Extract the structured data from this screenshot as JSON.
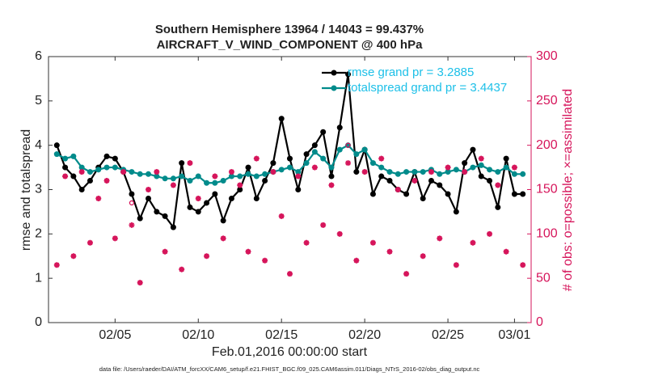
{
  "chart_data": {
    "type": "line",
    "title": "Southern Hemisphere 13964 / 14043 = 99.437%",
    "subtitle": "AIRCRAFT_V_WIND_COMPONENT @ 400 hPa",
    "x_label": "Feb.01,2016 00:00:00 start",
    "y_label": "rmse and totalspread",
    "y2_label": "# of obs: o=possible; ×=assimilated",
    "footnote": "data file: /Users/raeder/DAI/ATM_forcXX/CAM6_setup/f.e21.FHIST_BGC.f09_025.CAM6assim.011/Diags_NTrS_2016-02/obs_diag_output.nc",
    "xlim": [
      1,
      30
    ],
    "xticks": [
      {
        "value": 5,
        "label": "02/05"
      },
      {
        "value": 10,
        "label": "02/10"
      },
      {
        "value": 15,
        "label": "02/15"
      },
      {
        "value": 20,
        "label": "02/20"
      },
      {
        "value": 25,
        "label": "02/25"
      },
      {
        "value": 29,
        "label": "03/01"
      }
    ],
    "ylim": [
      0,
      6
    ],
    "yticks": [
      0,
      1,
      2,
      3,
      4,
      5,
      6
    ],
    "y2lim": [
      0,
      300
    ],
    "y2ticks": [
      0,
      50,
      100,
      150,
      200,
      250,
      300
    ],
    "legend": "top-right",
    "x": [
      1.5,
      2,
      2.5,
      3,
      3.5,
      4,
      4.5,
      5,
      5.5,
      6,
      6.5,
      7,
      7.5,
      8,
      8.5,
      9,
      9.5,
      10,
      10.5,
      11,
      11.5,
      12,
      12.5,
      13,
      13.5,
      14,
      14.5,
      15,
      15.5,
      16,
      16.5,
      17,
      17.5,
      18,
      18.5,
      19,
      19.5,
      20,
      20.5,
      21,
      21.5,
      22,
      22.5,
      23,
      23.5,
      24,
      24.5,
      25,
      25.5,
      26,
      26.5,
      27,
      27.5,
      28,
      28.5,
      29,
      29.5
    ],
    "series": [
      {
        "name": "rmse grand pr = 3.2885",
        "color": "#000000",
        "marker": "dot",
        "values": [
          4.0,
          3.5,
          3.3,
          3.0,
          3.2,
          3.5,
          3.75,
          3.7,
          3.4,
          2.9,
          2.35,
          2.8,
          2.5,
          2.4,
          2.15,
          3.6,
          2.6,
          2.5,
          2.7,
          2.9,
          2.3,
          2.8,
          3.0,
          3.5,
          2.8,
          3.2,
          3.6,
          4.6,
          3.7,
          3.0,
          3.8,
          4.0,
          4.3,
          3.3,
          4.4,
          5.6,
          3.4,
          3.9,
          2.9,
          3.3,
          3.2,
          3.0,
          2.9,
          3.4,
          2.8,
          3.2,
          3.1,
          2.9,
          2.5,
          3.6,
          3.9,
          3.3,
          3.2,
          2.6,
          3.7,
          2.9,
          2.9
        ]
      },
      {
        "name": "totalspread grand pr = 3.4437",
        "color": "#008b8b",
        "marker": "dot",
        "values": [
          3.8,
          3.7,
          3.75,
          3.5,
          3.4,
          3.45,
          3.5,
          3.5,
          3.45,
          3.4,
          3.35,
          3.35,
          3.3,
          3.25,
          3.25,
          3.3,
          3.2,
          3.3,
          3.15,
          3.15,
          3.2,
          3.3,
          3.3,
          3.35,
          3.3,
          3.35,
          3.4,
          3.45,
          3.5,
          3.4,
          3.6,
          3.85,
          3.7,
          3.5,
          3.9,
          4.0,
          3.8,
          3.9,
          3.6,
          3.5,
          3.4,
          3.35,
          3.4,
          3.4,
          3.4,
          3.45,
          3.35,
          3.4,
          3.45,
          3.4,
          3.5,
          3.55,
          3.45,
          3.4,
          3.5,
          3.35,
          3.35
        ]
      },
      {
        "axis": "y2",
        "color": "#d6155b",
        "marker": "circle",
        "values": [
          65,
          165,
          75,
          170,
          90,
          140,
          160,
          95,
          170,
          135,
          45,
          150,
          170,
          80,
          155,
          60,
          180,
          140,
          75,
          165,
          95,
          170,
          155,
          80,
          185,
          70,
          170,
          120,
          55,
          165,
          90,
          175,
          110,
          155,
          100,
          200,
          70,
          170,
          90,
          185,
          80,
          150,
          55,
          160,
          75,
          170,
          95,
          175,
          65,
          170,
          90,
          185,
          100,
          155,
          80,
          175,
          65
        ]
      },
      {
        "axis": "y2",
        "color": "#d6155b",
        "marker": "asterisk",
        "values": [
          65,
          165,
          75,
          170,
          90,
          140,
          160,
          95,
          170,
          110,
          45,
          150,
          170,
          80,
          155,
          60,
          180,
          140,
          75,
          165,
          95,
          170,
          155,
          80,
          185,
          70,
          170,
          120,
          55,
          165,
          90,
          175,
          110,
          155,
          100,
          180,
          70,
          170,
          90,
          185,
          80,
          150,
          55,
          160,
          75,
          170,
          95,
          175,
          65,
          170,
          90,
          185,
          100,
          155,
          80,
          175,
          65
        ]
      }
    ]
  }
}
